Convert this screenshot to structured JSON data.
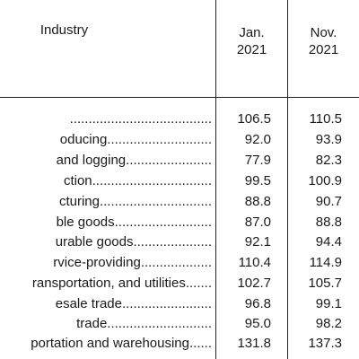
{
  "header": {
    "industry": "Industry",
    "col1_line1": "Jan.",
    "col1_line2": "2021",
    "col2_line1": "Nov.",
    "col2_line2": "2021"
  },
  "rows": [
    {
      "label": "......................................",
      "jan": "106.5",
      "nov": "110.5"
    },
    {
      "label": "oducing............................",
      "jan": "92.0",
      "nov": "93.9"
    },
    {
      "label": "and logging.......................",
      "jan": "77.9",
      "nov": "82.3"
    },
    {
      "label": "ction................................",
      "jan": "99.5",
      "nov": "100.9"
    },
    {
      "label": "cturing..............................",
      "jan": "88.8",
      "nov": "90.7"
    },
    {
      "label": "ble goods..........................",
      "jan": "87.0",
      "nov": "88.8"
    },
    {
      "label": "urable goods.....................",
      "jan": "92.1",
      "nov": "94.4"
    },
    {
      "label": "rvice-providing...................",
      "jan": "110.4",
      "nov": "114.9"
    },
    {
      "label": "ransportation, and utilities.......",
      "jan": "102.7",
      "nov": "105.7"
    },
    {
      "label": "esale trade........................",
      "jan": "96.8",
      "nov": "99.1"
    },
    {
      "label": "trade............................",
      "jan": "95.0",
      "nov": "98.2"
    },
    {
      "label": "portation and warehousing......",
      "jan": "131.8",
      "nov": "137.3"
    }
  ]
}
